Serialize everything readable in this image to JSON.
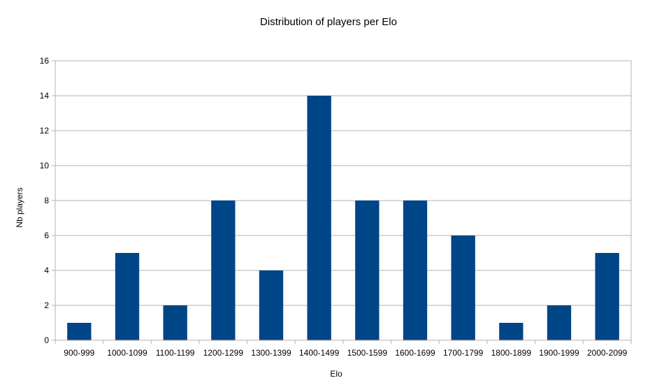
{
  "chart_data": {
    "type": "bar",
    "title": "Distribution of players per Elo",
    "xlabel": "Elo",
    "ylabel": "Nb players",
    "categories": [
      "900-999",
      "1000-1099",
      "1100-1199",
      "1200-1299",
      "1300-1399",
      "1400-1499",
      "1500-1599",
      "1600-1699",
      "1700-1799",
      "1800-1899",
      "1900-1999",
      "2000-2099"
    ],
    "values": [
      1,
      5,
      2,
      8,
      4,
      14,
      8,
      8,
      6,
      1,
      2,
      5
    ],
    "ylim": [
      0,
      16
    ],
    "yticks": [
      0,
      2,
      4,
      6,
      8,
      10,
      12,
      14,
      16
    ],
    "grid": true,
    "legend": "none",
    "bar_color": "#004586"
  }
}
